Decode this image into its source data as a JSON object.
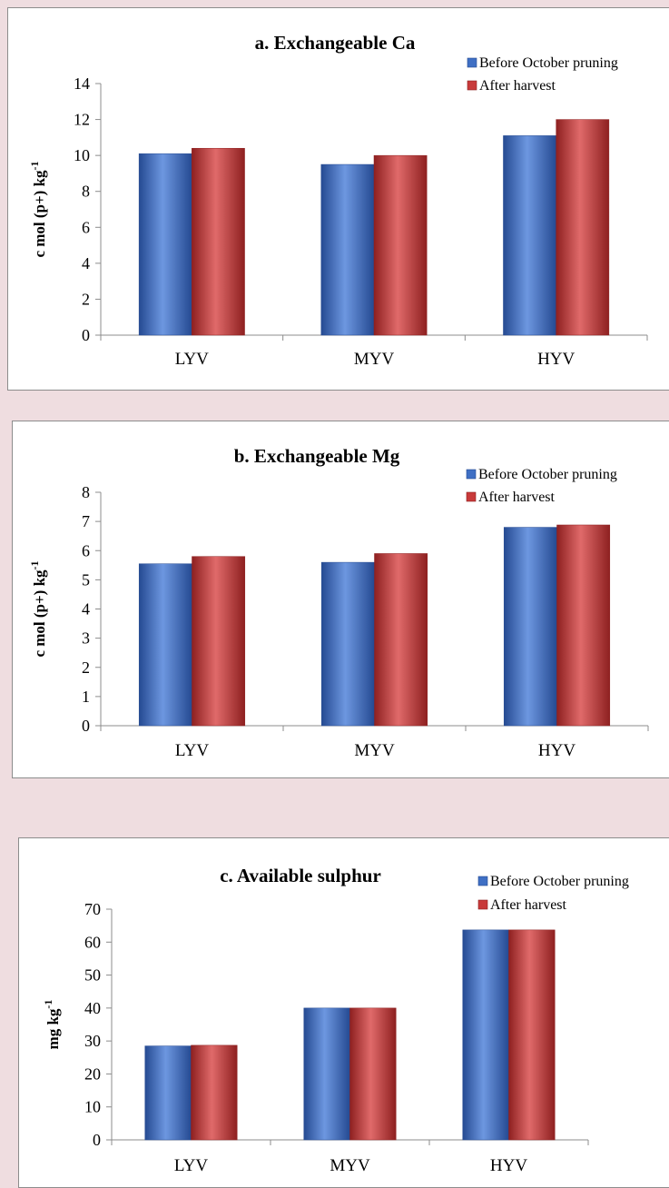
{
  "colors": {
    "before": "#3f6fc4",
    "before_dark": "#254a92",
    "before_light": "#6d97e0",
    "after": "#c83a3a",
    "after_dark": "#8e2020",
    "after_light": "#e06a6a",
    "axis": "#8c8c8c"
  },
  "chart_data": [
    {
      "type": "bar",
      "title": "a. Exchangeable Ca",
      "ylabel": "c mol (p+) kg",
      "ylabel_sup": "-1",
      "categories": [
        "LYV",
        "MYV",
        "HYV"
      ],
      "series": [
        {
          "name": "Before October pruning",
          "values": [
            10.1,
            9.5,
            11.1
          ]
        },
        {
          "name": "After harvest",
          "values": [
            10.4,
            10.0,
            12.0
          ]
        }
      ],
      "ylim": [
        0,
        14
      ],
      "yticks": [
        0,
        2,
        4,
        6,
        8,
        10,
        12,
        14
      ],
      "grid": false,
      "legend": "top-right"
    },
    {
      "type": "bar",
      "title": "b. Exchangeable Mg",
      "ylabel": "c mol (p+) kg",
      "ylabel_sup": "-1",
      "categories": [
        "LYV",
        "MYV",
        "HYV"
      ],
      "series": [
        {
          "name": "Before October pruning",
          "values": [
            5.55,
            5.6,
            6.8
          ]
        },
        {
          "name": "After harvest",
          "values": [
            5.8,
            5.9,
            6.88
          ]
        }
      ],
      "ylim": [
        0,
        8
      ],
      "yticks": [
        0,
        1,
        2,
        3,
        4,
        5,
        6,
        7,
        8
      ],
      "grid": false,
      "legend": "top-right"
    },
    {
      "type": "bar",
      "title": "c. Available sulphur",
      "ylabel": "mg kg",
      "ylabel_sup": "-1",
      "categories": [
        "LYV",
        "MYV",
        "HYV"
      ],
      "series": [
        {
          "name": "Before October pruning",
          "values": [
            28.5,
            40,
            63.7
          ]
        },
        {
          "name": "After harvest",
          "values": [
            28.7,
            40,
            63.7
          ]
        }
      ],
      "ylim": [
        0,
        70
      ],
      "yticks": [
        0,
        10,
        20,
        30,
        40,
        50,
        60,
        70
      ],
      "grid": false,
      "legend": "top-right"
    }
  ]
}
